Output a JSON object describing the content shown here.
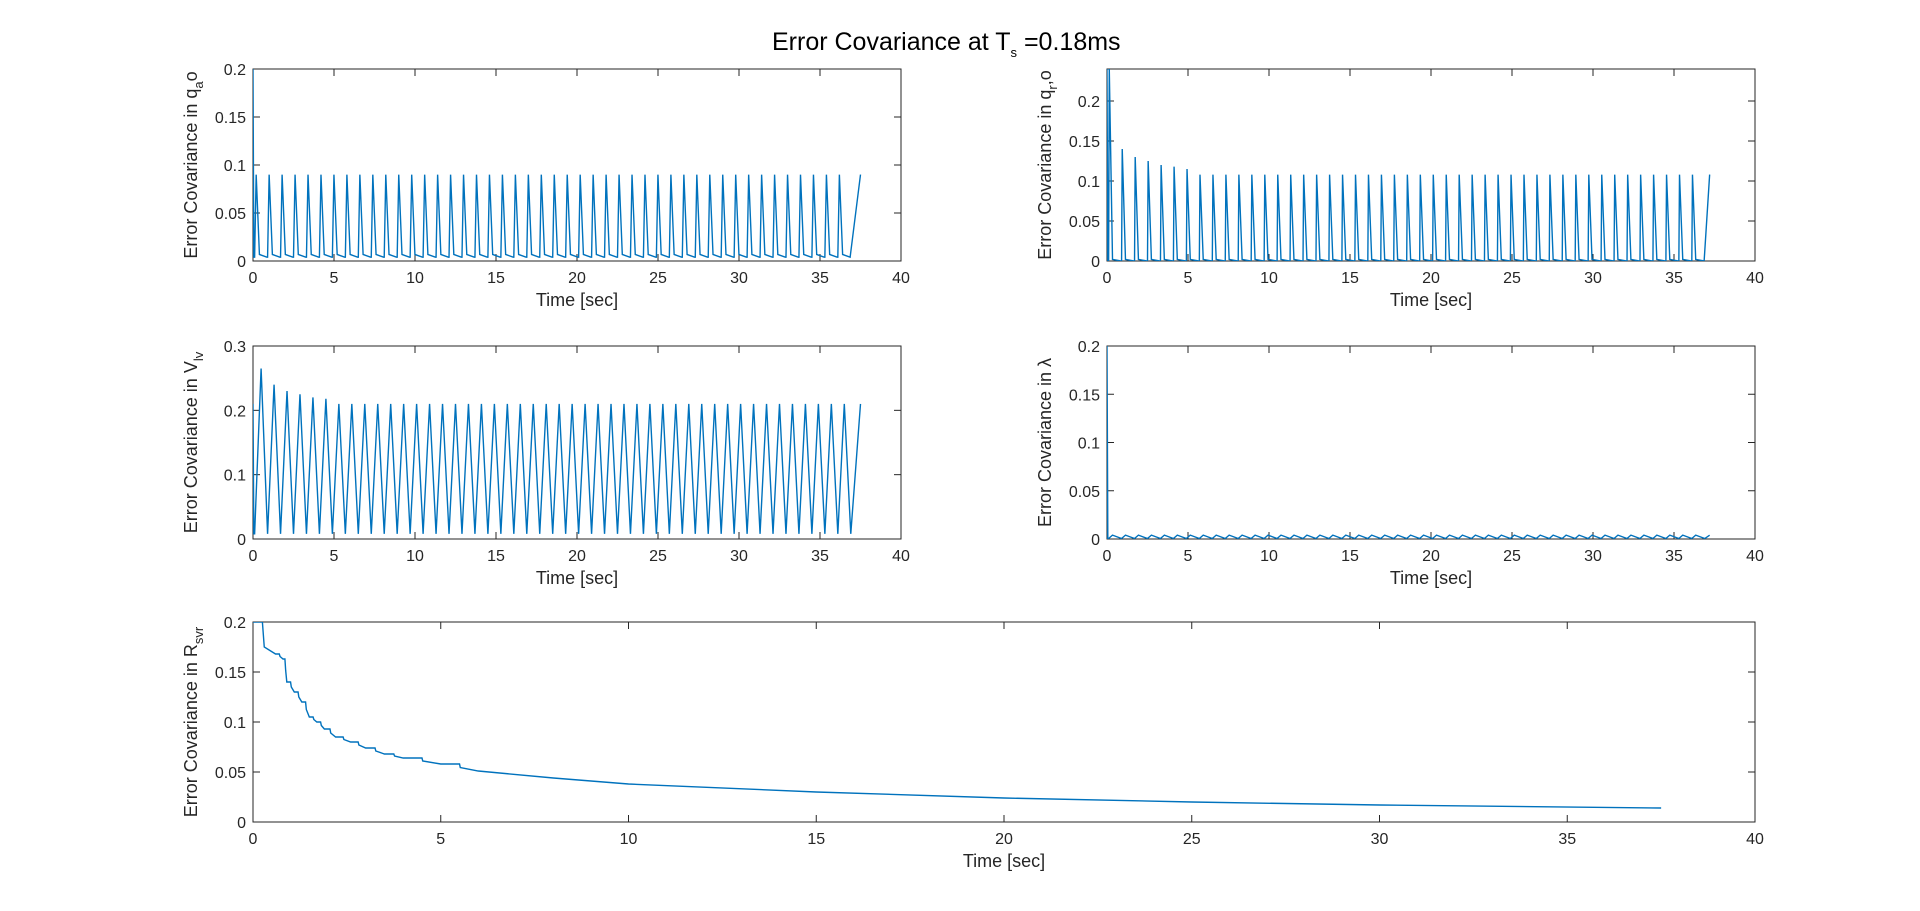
{
  "figure": {
    "title_main": "Error Covariance at T",
    "title_sub": "s",
    "title_rest": " =0.18ms",
    "line_color": "#0072BD",
    "axis_color": "#262626"
  },
  "chart_data": [
    {
      "type": "line",
      "xlabel": "Time [sec]",
      "ylabel": "Error Covariance in q",
      "ylabel_sub": "a",
      "ylabel_rest": "o",
      "xlim": [
        0,
        40
      ],
      "ylim": [
        0,
        0.2
      ],
      "xticks": [
        0,
        5,
        10,
        15,
        20,
        25,
        30,
        35,
        40
      ],
      "yticks": [
        0,
        0.05,
        0.1,
        0.15,
        0.2
      ],
      "ytick_labels": [
        "0",
        "0.05",
        "0.1",
        "0.15",
        "0.2"
      ],
      "pattern": {
        "kind": "periodic",
        "x_end": 37.5,
        "period": 0.8,
        "initial": 0.2,
        "peak": 0.09,
        "trough": 0.004,
        "peak_frac": 0.12
      }
    },
    {
      "type": "line",
      "xlabel": "Time [sec]",
      "ylabel": "Error Covariance in q",
      "ylabel_sub": "r",
      "ylabel_rest": ",o",
      "xlim": [
        0,
        40
      ],
      "ylim": [
        0,
        0.24
      ],
      "xticks": [
        0,
        5,
        10,
        15,
        20,
        25,
        30,
        35,
        40
      ],
      "yticks": [
        0,
        0.05,
        0.1,
        0.15,
        0.2
      ],
      "ytick_labels": [
        "0",
        "0.05",
        "0.1",
        "0.15",
        "0.2"
      ],
      "pattern": {
        "kind": "periodic",
        "x_end": 37.2,
        "period": 0.8,
        "initial": 0.24,
        "peak": 0.108,
        "trough": 0.0,
        "peak_frac": 0.05,
        "decay_peaks": [
          0.24,
          0.14,
          0.13,
          0.125,
          0.12,
          0.118,
          0.115
        ]
      }
    },
    {
      "type": "line",
      "xlabel": "Time [sec]",
      "ylabel": "Error Covariance in V",
      "ylabel_sub": "lv",
      "ylabel_rest": "",
      "xlim": [
        0,
        40
      ],
      "ylim": [
        0,
        0.3
      ],
      "xticks": [
        0,
        5,
        10,
        15,
        20,
        25,
        30,
        35,
        40
      ],
      "yticks": [
        0,
        0.1,
        0.2,
        0.3
      ],
      "ytick_labels": [
        "0",
        "0.1",
        "0.2",
        "0.3"
      ],
      "pattern": {
        "kind": "periodic",
        "x_end": 37.5,
        "period": 0.8,
        "initial": 0.21,
        "peak": 0.21,
        "trough": 0.008,
        "peak_frac": 0.5,
        "decay_peaks": [
          0.265,
          0.24,
          0.23,
          0.225,
          0.22,
          0.218
        ]
      }
    },
    {
      "type": "line",
      "xlabel": "Time [sec]",
      "ylabel": "Error Covariance in λ",
      "ylabel_sub": "",
      "ylabel_rest": "",
      "xlim": [
        0,
        40
      ],
      "ylim": [
        0,
        0.2
      ],
      "xticks": [
        0,
        5,
        10,
        15,
        20,
        25,
        30,
        35,
        40
      ],
      "yticks": [
        0,
        0.05,
        0.1,
        0.15,
        0.2
      ],
      "ytick_labels": [
        "0",
        "0.05",
        "0.1",
        "0.15",
        "0.2"
      ],
      "pattern": {
        "kind": "periodic",
        "x_end": 37.2,
        "period": 0.8,
        "initial": 0.2,
        "peak": 0.004,
        "trough": 0.0005,
        "peak_frac": 0.3
      }
    },
    {
      "type": "line",
      "xlabel": "Time [sec]",
      "ylabel": "Error Covariance in R",
      "ylabel_sub": "svr",
      "ylabel_rest": "",
      "xlim": [
        0,
        40
      ],
      "ylim": [
        0,
        0.2
      ],
      "xticks": [
        0,
        5,
        10,
        15,
        20,
        25,
        30,
        35,
        40
      ],
      "yticks": [
        0,
        0.05,
        0.1,
        0.15,
        0.2
      ],
      "ytick_labels": [
        "0",
        "0.05",
        "0.1",
        "0.15",
        "0.2"
      ],
      "pattern": {
        "kind": "decay",
        "x_end": 37.5,
        "x": [
          0,
          0.25,
          0.3,
          0.6,
          0.8,
          0.9,
          1.1,
          1.3,
          1.5,
          1.7,
          1.9,
          2.2,
          2.6,
          3.0,
          3.5,
          4.0,
          5.0,
          6.0,
          8.0,
          10.0,
          15.0,
          20.0,
          25.0,
          30.0,
          37.5
        ],
        "y": [
          0.2,
          0.2,
          0.175,
          0.168,
          0.163,
          0.14,
          0.13,
          0.12,
          0.105,
          0.1,
          0.093,
          0.085,
          0.08,
          0.074,
          0.068,
          0.064,
          0.058,
          0.051,
          0.044,
          0.038,
          0.03,
          0.024,
          0.02,
          0.017,
          0.014
        ]
      }
    }
  ]
}
